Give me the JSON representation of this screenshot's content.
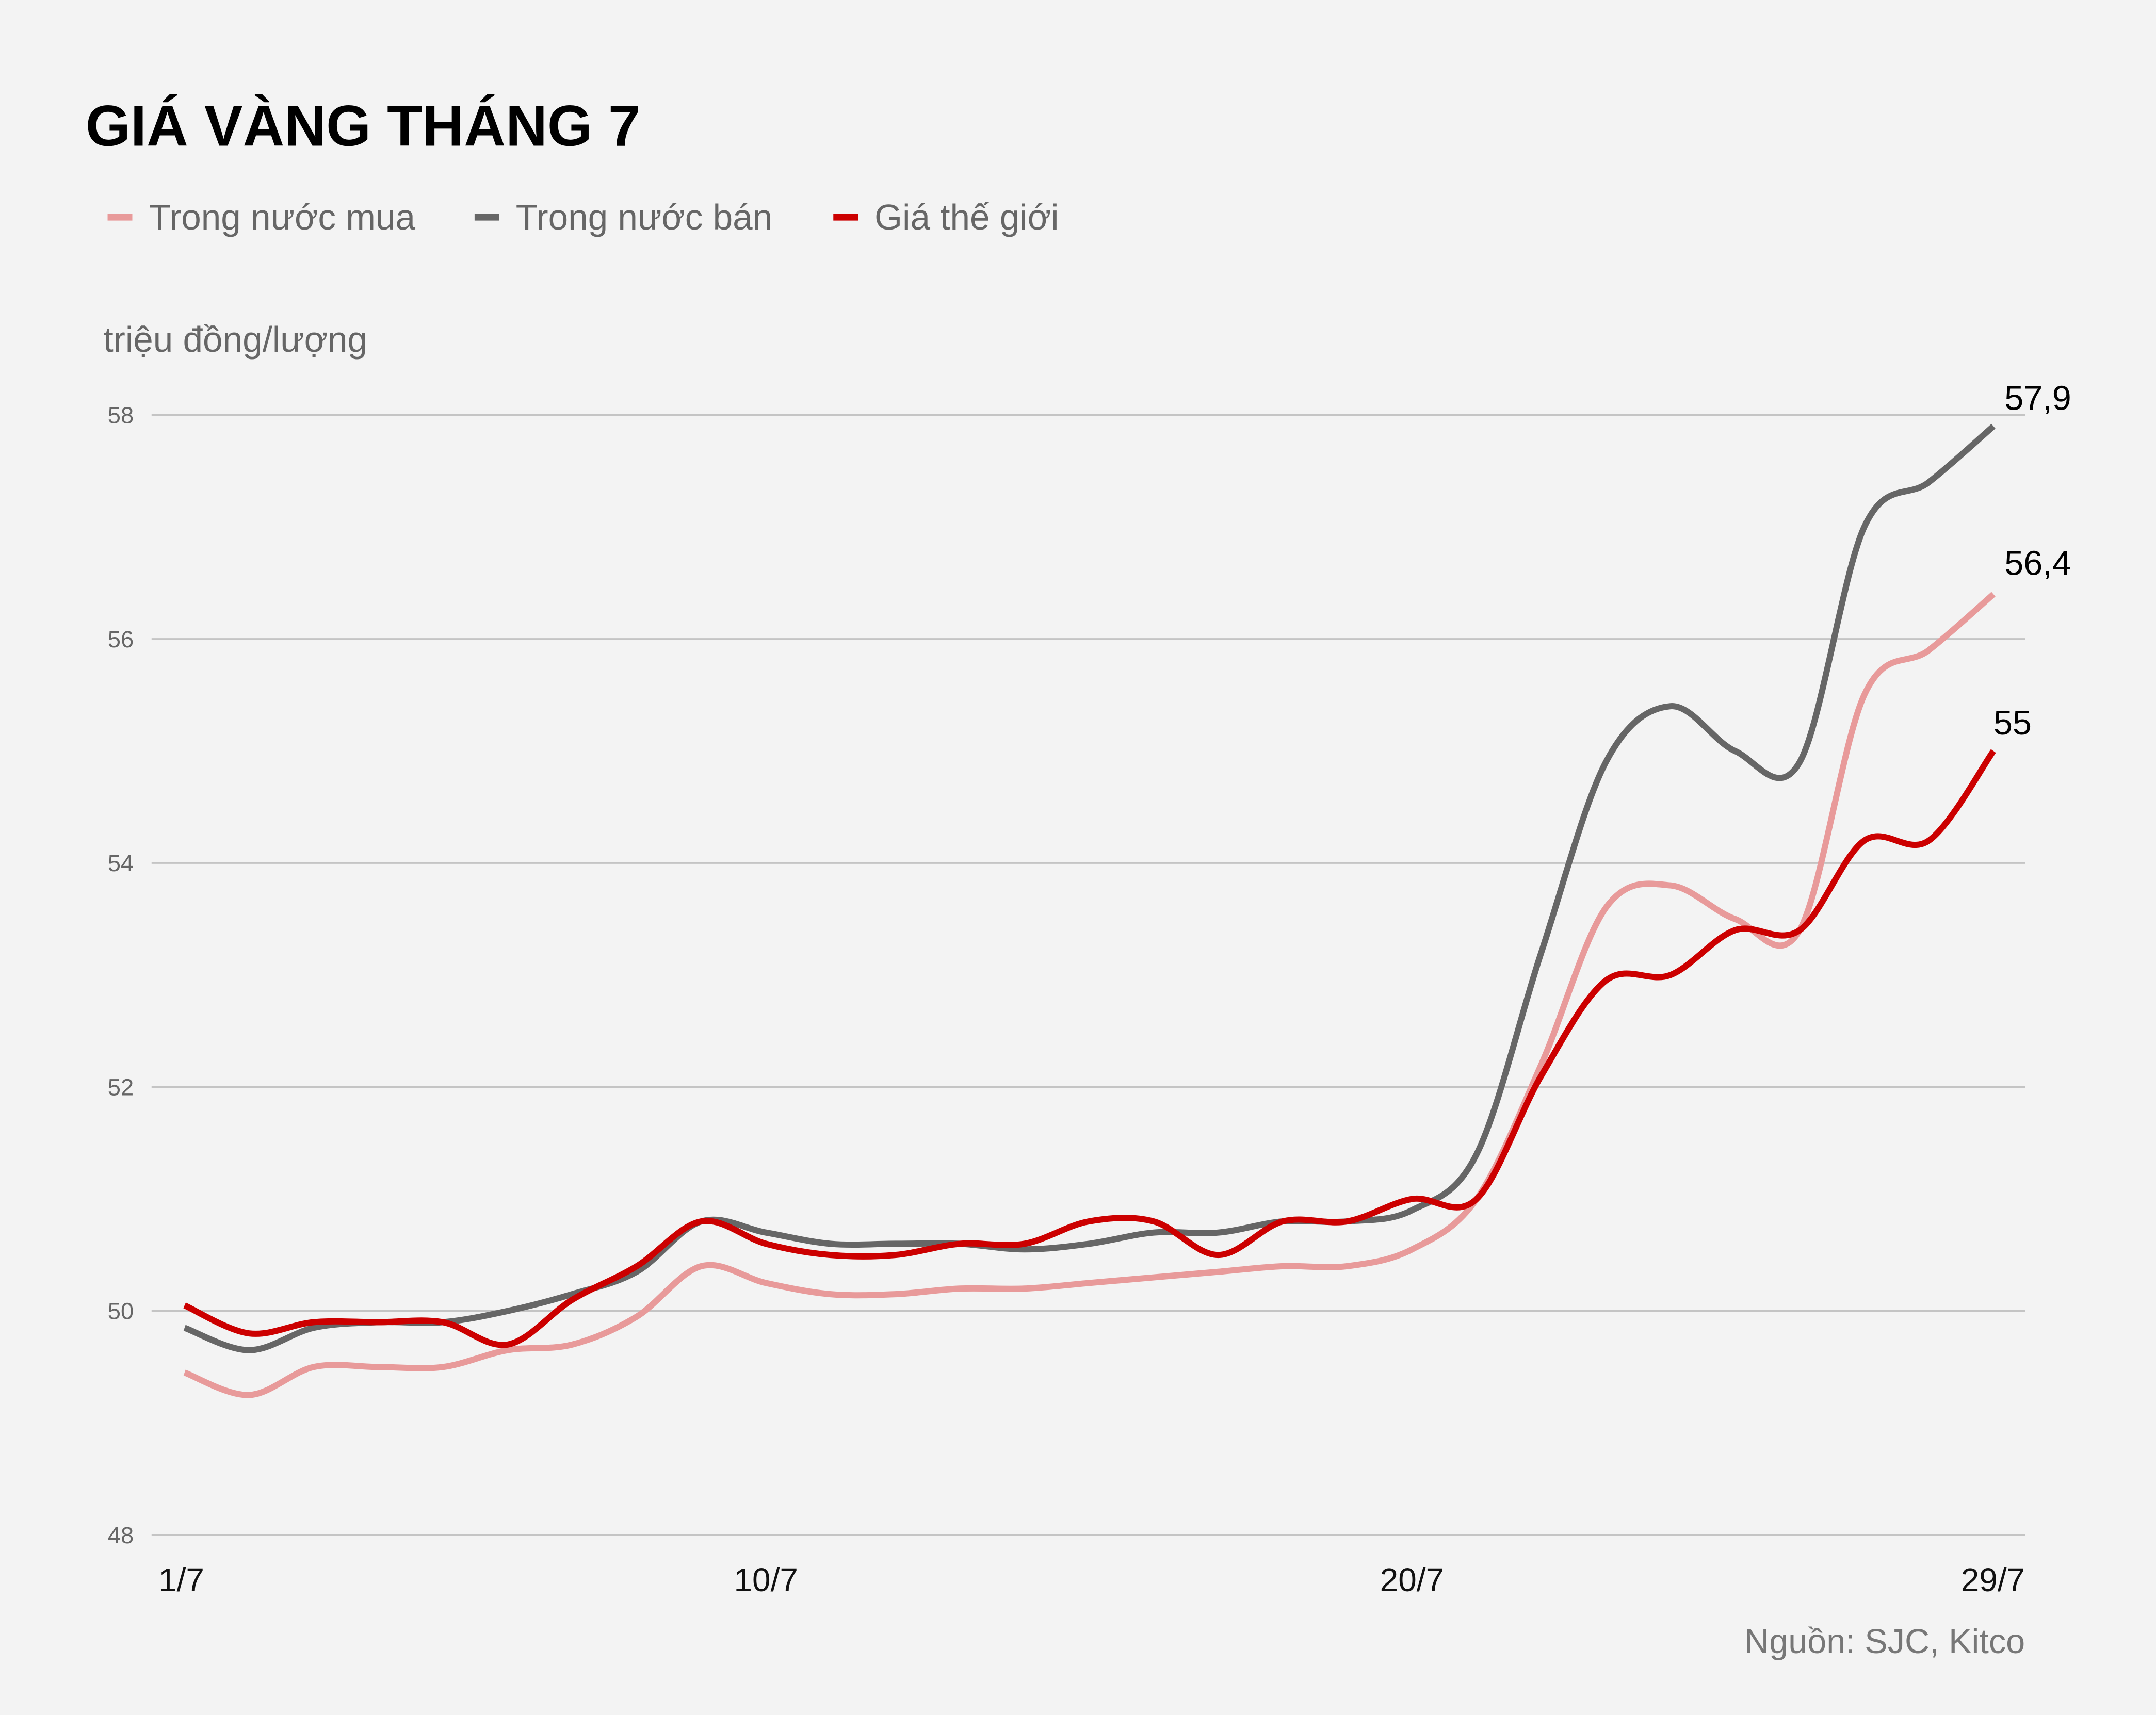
{
  "chart_data": {
    "type": "line",
    "title": "GIÁ VÀNG THÁNG 7",
    "ylabel": "triệu đồng/lượng",
    "source": "Nguồn: SJC, Kitco",
    "ylim": [
      48,
      58
    ],
    "yticks": [
      "48",
      "50",
      "52",
      "54",
      "56",
      "58"
    ],
    "ytick_values": [
      48,
      50,
      52,
      54,
      56,
      58
    ],
    "x": [
      1,
      2,
      3,
      4,
      5,
      6,
      7,
      8,
      9,
      10,
      11,
      12,
      13,
      14,
      15,
      16,
      17,
      18,
      19,
      20,
      21,
      22,
      23,
      24,
      25,
      26,
      27,
      28,
      29
    ],
    "xtick_labels": [
      "1/7",
      "10/7",
      "20/7",
      "29/7"
    ],
    "xtick_days": [
      1,
      10,
      20,
      29
    ],
    "grid": true,
    "legend_position": "top-left",
    "series": [
      {
        "name": "Trong nước mua",
        "color": "#e89a9a",
        "end_label": "56,4",
        "values": [
          49.45,
          49.25,
          49.5,
          49.5,
          49.5,
          49.65,
          49.7,
          49.95,
          50.4,
          50.25,
          50.15,
          50.15,
          50.2,
          50.2,
          50.25,
          50.3,
          50.35,
          50.4,
          50.4,
          50.55,
          51.0,
          52.2,
          53.6,
          53.8,
          53.5,
          53.4,
          55.5,
          55.9,
          56.4
        ]
      },
      {
        "name": "Trong nước bán",
        "color": "#666666",
        "end_label": "57,9",
        "values": [
          49.85,
          49.65,
          49.85,
          49.9,
          49.9,
          50.0,
          50.15,
          50.35,
          50.8,
          50.7,
          50.6,
          50.6,
          50.6,
          50.55,
          50.6,
          50.7,
          50.7,
          50.8,
          50.8,
          50.9,
          51.4,
          53.2,
          54.9,
          55.4,
          55.0,
          54.9,
          57.0,
          57.4,
          57.9
        ]
      },
      {
        "name": "Giá thế giới",
        "color": "#cc0000",
        "end_label": "55",
        "values": [
          50.05,
          49.8,
          49.9,
          49.9,
          49.9,
          49.7,
          50.1,
          50.4,
          50.8,
          50.6,
          50.5,
          50.5,
          50.6,
          50.6,
          50.8,
          50.8,
          50.5,
          50.8,
          50.8,
          51.0,
          51.0,
          52.1,
          52.95,
          53.0,
          53.4,
          53.4,
          54.2,
          54.2,
          55.0
        ]
      }
    ]
  }
}
